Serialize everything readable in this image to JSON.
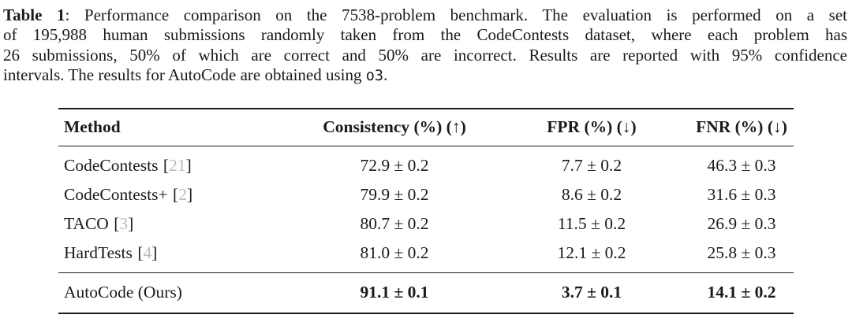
{
  "caption": {
    "title_label": "Table 1",
    "line1_rest": ": Performance comparison on the 7538-problem benchmark. The evaluation is performed on a set",
    "line2": "of 195,988 human submissions randomly taken from the CodeContests dataset, where each problem has",
    "line3": "26 submissions, 50% of which are correct and 50% are incorrect. Results are reported with 95% confidence",
    "line4_pre": "intervals. The results for AutoCode are obtained using ",
    "line4_model": "o3",
    "line4_end": "."
  },
  "table": {
    "headers": {
      "method": "Method",
      "consistency": "Consistency (%) (↑)",
      "fpr": "FPR (%) (↓)",
      "fnr": "FNR (%) (↓)"
    },
    "citation_brackets": {
      "open": "[",
      "close": "]"
    },
    "rows": [
      {
        "method": "CodeContests",
        "cite": "21",
        "consistency": "72.9 ± 0.2",
        "fpr": "7.7 ± 0.2",
        "fnr": "46.3 ± 0.3"
      },
      {
        "method": "CodeContests+",
        "cite": "2",
        "consistency": "79.9 ± 0.2",
        "fpr": "8.6 ± 0.2",
        "fnr": "31.6 ± 0.3"
      },
      {
        "method": "TACO",
        "cite": "3",
        "consistency": "80.7 ± 0.2",
        "fpr": "11.5 ± 0.2",
        "fnr": "26.9 ± 0.3"
      },
      {
        "method": "HardTests",
        "cite": "4",
        "consistency": "81.0 ± 0.2",
        "fpr": "12.1 ± 0.2",
        "fnr": "25.8 ± 0.3"
      }
    ],
    "highlight_row": {
      "method": "AutoCode (Ours)",
      "consistency": "91.1 ± 0.1",
      "fpr": "3.7 ± 0.1",
      "fnr": "14.1 ± 0.2"
    }
  },
  "colors": {
    "text": "#1a1a1a",
    "citation": "#b9bdb6",
    "rule": "#1a1a1a",
    "background": "#ffffff"
  }
}
